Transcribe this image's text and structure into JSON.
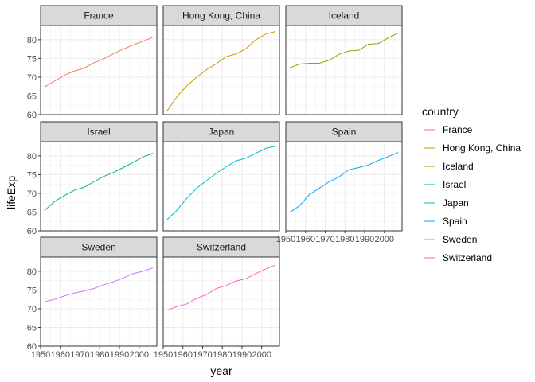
{
  "chart_data": {
    "type": "line",
    "facet_by": "country",
    "xlabel": "year",
    "ylabel": "lifeExp",
    "xlim": [
      1950,
      2009
    ],
    "ylim": [
      60,
      83.8
    ],
    "x_ticks": [
      1950,
      1960,
      1970,
      1980,
      1990,
      2000
    ],
    "y_ticks": [
      60,
      65,
      70,
      75,
      80
    ],
    "grid": true,
    "legend": {
      "title": "country",
      "placement": "right"
    },
    "x": [
      1952,
      1957,
      1962,
      1967,
      1972,
      1977,
      1982,
      1987,
      1992,
      1997,
      2002,
      2007
    ],
    "series": [
      {
        "name": "France",
        "color": "#F8766D",
        "values": [
          67.4,
          68.9,
          70.5,
          71.6,
          72.4,
          73.8,
          74.9,
          76.3,
          77.5,
          78.6,
          79.6,
          80.7
        ]
      },
      {
        "name": "Hong Kong, China",
        "color": "#CD9600",
        "values": [
          61.0,
          64.8,
          67.7,
          70.0,
          72.0,
          73.6,
          75.5,
          76.2,
          77.6,
          80.0,
          81.5,
          82.2
        ]
      },
      {
        "name": "Iceland",
        "color": "#7CAE00",
        "values": [
          72.5,
          73.5,
          73.7,
          73.7,
          74.5,
          76.1,
          77.0,
          77.2,
          78.8,
          79.0,
          80.5,
          81.8
        ]
      },
      {
        "name": "Israel",
        "color": "#00BE67",
        "values": [
          65.4,
          67.8,
          69.4,
          70.8,
          71.6,
          73.1,
          74.5,
          75.6,
          76.9,
          78.3,
          79.7,
          80.7
        ]
      },
      {
        "name": "Japan",
        "color": "#00BFC4",
        "values": [
          63.0,
          65.5,
          68.7,
          71.4,
          73.4,
          75.4,
          77.1,
          78.7,
          79.4,
          80.7,
          82.0,
          82.6
        ]
      },
      {
        "name": "Spain",
        "color": "#00A9FF",
        "values": [
          64.9,
          66.7,
          69.7,
          71.4,
          73.1,
          74.4,
          76.3,
          76.9,
          77.6,
          78.8,
          79.8,
          80.9
        ]
      },
      {
        "name": "Sweden",
        "color": "#C77CFF",
        "values": [
          71.9,
          72.5,
          73.4,
          74.2,
          74.7,
          75.4,
          76.4,
          77.2,
          78.2,
          79.4,
          80.0,
          80.9
        ]
      },
      {
        "name": "Switzerland",
        "color": "#FF61CC",
        "values": [
          69.6,
          70.6,
          71.3,
          72.8,
          73.8,
          75.4,
          76.2,
          77.4,
          78.0,
          79.4,
          80.6,
          81.7
        ]
      }
    ]
  }
}
